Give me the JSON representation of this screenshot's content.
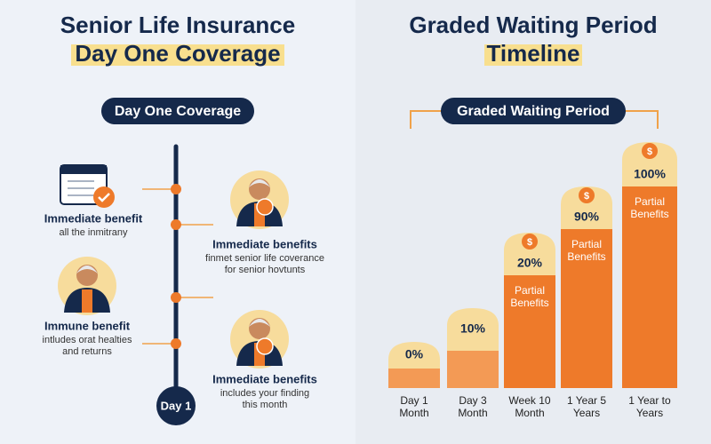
{
  "left": {
    "title_lines": [
      "Senior Life Insurance",
      "Day One Coverage"
    ],
    "pill": "Day One Coverage",
    "items": [
      {
        "title": "Immediate benefit",
        "lines": [
          "all the inmitrany"
        ]
      },
      {
        "title": "Immediate benefits",
        "lines": [
          "finmet senior life coverance",
          "for senior hovtunts"
        ]
      },
      {
        "title": "Immune benefit",
        "lines": [
          "intludes orat healties",
          "and returns"
        ]
      },
      {
        "title": "Immediate benefits",
        "lines": [
          "includes your finding",
          "this month"
        ]
      }
    ],
    "marker": "Day 1"
  },
  "right": {
    "title_lines": [
      "Graded Waiting Period",
      "Timeline"
    ],
    "pill": "Graded Waiting Period",
    "steps": [
      {
        "percent": "0%",
        "label_lines": [
          "Day 1",
          "Month"
        ]
      },
      {
        "percent": "10%",
        "label_lines": [
          "Day 3",
          "Month"
        ]
      },
      {
        "percent": "20%",
        "note_lines": [
          "Partial",
          "Benefits"
        ],
        "label_lines": [
          "Week 10",
          "Month"
        ]
      },
      {
        "percent": "90%",
        "note_lines": [
          "Partial",
          "Benefits"
        ],
        "label_lines": [
          "1 Year 5",
          "Years"
        ]
      },
      {
        "percent": "100%",
        "note_lines": [
          "Partial",
          "Benefits"
        ],
        "label_lines": [
          "1 Year to",
          "Years"
        ]
      }
    ]
  }
}
